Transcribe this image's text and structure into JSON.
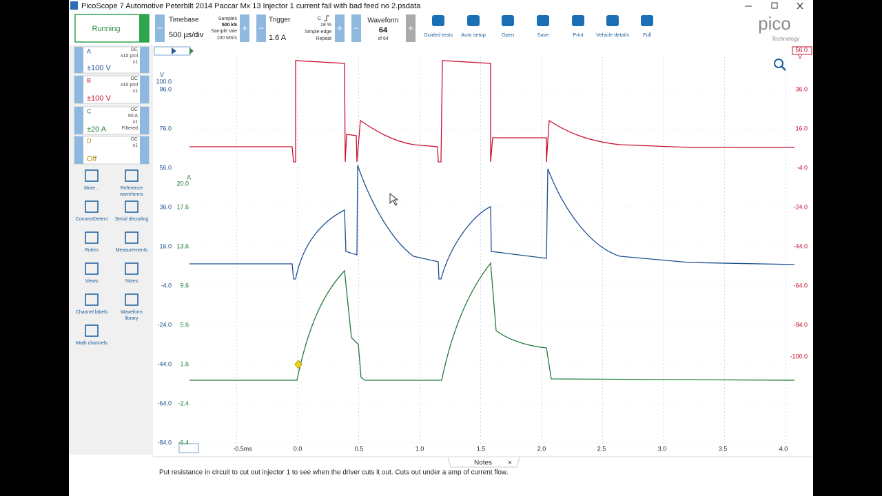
{
  "title_bar": {
    "title": "PicoScope 7 Automotive Peterbilt 2014 Paccar Mx 13 Injector 1 current fail with bad feed no 2.psdata"
  },
  "toolbar": {
    "status": "Running",
    "timebase": {
      "label": "Timebase",
      "value": "500 µs/div",
      "samples_label": "Samples",
      "samples": "500 kS",
      "rate_label": "Sample rate",
      "rate": "100 MS/s"
    },
    "trigger": {
      "label": "Trigger",
      "value": "1.6 A",
      "channel": "C",
      "percent": "18 %",
      "edge": "Simple edge",
      "mode": "Repeat"
    },
    "waveform": {
      "label": "Waveform",
      "value": "64",
      "of": "of 64"
    },
    "buttons": [
      "Guided tests",
      "Auto setup",
      "Open",
      "Save",
      "Print",
      "Vehicle details",
      "Full"
    ]
  },
  "logo": {
    "name": "pico",
    "sub": "Technology"
  },
  "channels": [
    {
      "name": "A",
      "info": [
        "DC",
        "x10 prol",
        "x1"
      ],
      "range": "±100 V"
    },
    {
      "name": "B",
      "info": [
        "DC",
        "x10 prol",
        "x1"
      ],
      "range": "±100 V"
    },
    {
      "name": "C",
      "info": [
        "DC",
        "60 A",
        "x1",
        "Filtered"
      ],
      "range": "±20 A"
    },
    {
      "name": "D",
      "info": [
        "DC",
        "x1"
      ],
      "range": "Off"
    }
  ],
  "tools": [
    [
      "More..."
    ],
    [
      "Reference",
      "waveforms"
    ],
    [
      "ConnectDetect"
    ],
    [
      "Serial decoding"
    ],
    [
      "Rulers"
    ],
    [
      "Measurements"
    ],
    [
      "Views"
    ],
    [
      "Notes"
    ],
    [
      "Channel labels"
    ],
    [
      "Waveform",
      "library"
    ],
    [
      "Math channels"
    ]
  ],
  "plot": {
    "x_ticks": [
      "-0.5ms",
      "0.0",
      "0.5",
      "1.0",
      "1.5",
      "2.0",
      "2.5",
      "3.0",
      "3.5",
      "4.0"
    ],
    "axis_blue": {
      "unit": "V",
      "ticks": [
        "100.0",
        "96.0",
        "76.0",
        "56.0",
        "36.0",
        "16.0",
        "-4.0",
        "-24.0",
        "-44.0",
        "-64.0",
        "-84.0"
      ]
    },
    "axis_green": {
      "unit": "A",
      "ticks": [
        "20.0",
        "17.6",
        "13.6",
        "9.6",
        "5.6",
        "1.6",
        "-2.4",
        "-6.4"
      ]
    },
    "axis_red": {
      "unit": "V",
      "ticks": [
        "56.0",
        "36.0",
        "16.0",
        "-4.0",
        "-24.0",
        "-44.0",
        "-64.0",
        "-84.0",
        "-100.0"
      ]
    }
  },
  "notes": {
    "tab": "Notes",
    "close": "×",
    "text": "Put resistance in circuit to cut out injector 1 to see when the driver cuts it out.  Cuts out under a amp of current flow."
  }
}
